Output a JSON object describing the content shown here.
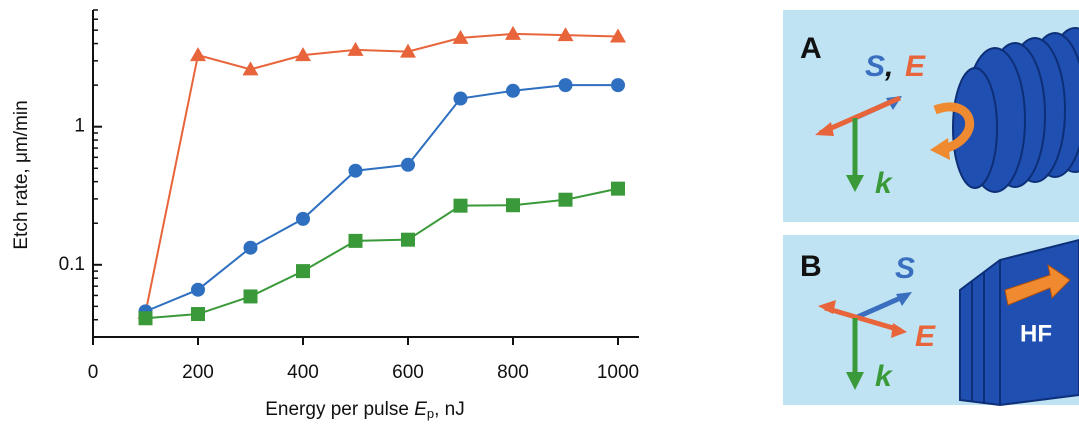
{
  "chart_data": {
    "type": "line",
    "log_y": true,
    "ylabel": "Etch rate, μm/min",
    "xlabel": "Energy per pulse",
    "xlabel_symbol": "E",
    "xlabel_subscript": "p",
    "xlabel_unit": ", nJ",
    "x": [
      100,
      200,
      300,
      400,
      500,
      600,
      700,
      800,
      900,
      1000
    ],
    "series": [
      {
        "color": "#e8643a",
        "marker": "triangle",
        "values": [
          0.045,
          3.3,
          2.6,
          3.3,
          3.6,
          3.5,
          4.4,
          4.7,
          4.6,
          4.5
        ]
      },
      {
        "color": "#2f6fc0",
        "marker": "circle",
        "values": [
          0.046,
          0.066,
          0.133,
          0.215,
          0.48,
          0.53,
          1.6,
          1.82,
          2.0,
          2.0
        ]
      },
      {
        "color": "#3a9a3a",
        "marker": "square",
        "values": [
          0.041,
          0.044,
          0.059,
          0.09,
          0.149,
          0.152,
          0.268,
          0.27,
          0.296,
          0.356
        ]
      }
    ],
    "xlim": [
      0,
      1040
    ],
    "xticks": [
      0,
      200,
      400,
      600,
      800,
      1000
    ],
    "ylim": [
      0.03,
      7
    ],
    "yticks": [
      0.1,
      1
    ],
    "yminorticks": [
      0.04,
      0.05,
      0.06,
      0.07,
      0.08,
      0.09,
      0.2,
      0.3,
      0.4,
      0.5,
      0.6,
      0.7,
      0.8,
      0.9,
      2,
      3,
      4,
      5,
      6,
      7
    ],
    "grid": false
  },
  "diagram": {
    "panels": [
      {
        "label": "A",
        "s": "S",
        "comma": ",",
        "e": "E",
        "k": "k"
      },
      {
        "label": "B",
        "s": "S",
        "e": "E",
        "k": "k",
        "beam": "HF"
      }
    ]
  }
}
